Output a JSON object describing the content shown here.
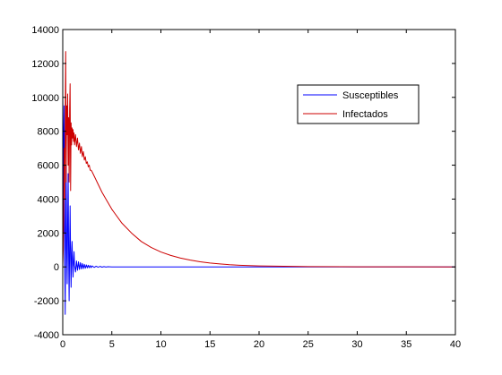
{
  "chart_data": {
    "type": "line",
    "xlim": [
      0,
      40
    ],
    "ylim": [
      -4000,
      14000
    ],
    "x_ticks": [
      0,
      5,
      10,
      15,
      20,
      25,
      30,
      35,
      40
    ],
    "y_ticks": [
      -4000,
      -2000,
      0,
      2000,
      4000,
      6000,
      8000,
      10000,
      12000,
      14000
    ],
    "x_tick_labels": [
      "0",
      "5",
      "10",
      "15",
      "20",
      "25",
      "30",
      "35",
      "40"
    ],
    "y_tick_labels": [
      "-4000",
      "-2000",
      "0",
      "2000",
      "4000",
      "6000",
      "8000",
      "10000",
      "12000",
      "14000"
    ],
    "grid": false,
    "legend_position": "upper-right",
    "series": [
      {
        "name": "Susceptibles",
        "color": "#0000ff",
        "x": [
          0.0,
          0.05,
          0.1,
          0.15,
          0.2,
          0.25,
          0.3,
          0.35,
          0.4,
          0.45,
          0.5,
          0.55,
          0.6,
          0.65,
          0.7,
          0.75,
          0.8,
          0.85,
          0.9,
          0.95,
          1.0,
          1.05,
          1.1,
          1.15,
          1.2,
          1.3,
          1.4,
          1.5,
          1.6,
          1.7,
          1.8,
          1.9,
          2.0,
          2.1,
          2.2,
          2.3,
          2.4,
          2.5,
          2.6,
          2.7,
          2.8,
          2.9,
          3.0,
          3.2,
          3.4,
          3.6,
          3.8,
          4.0,
          4.2,
          4.4,
          4.6,
          5.0,
          6.0,
          8.0,
          10.0,
          15.0,
          20.0,
          25.0,
          30.0,
          35.0,
          40.0
        ],
        "y": [
          10000,
          8000,
          2000,
          9500,
          500,
          -2800,
          2500,
          6000,
          1000,
          -1000,
          2500,
          5500,
          800,
          -2000,
          1200,
          3600,
          500,
          -1200,
          800,
          1500,
          200,
          -600,
          400,
          900,
          100,
          -300,
          350,
          -200,
          300,
          -150,
          250,
          -120,
          200,
          -100,
          150,
          -80,
          120,
          -60,
          100,
          -50,
          80,
          -40,
          60,
          -30,
          40,
          -20,
          30,
          -15,
          20,
          -10,
          10,
          0,
          0,
          0,
          0,
          0,
          0,
          0,
          0,
          0,
          0
        ]
      },
      {
        "name": "Infectados",
        "color": "#cc0000",
        "x": [
          0.0,
          0.05,
          0.1,
          0.15,
          0.2,
          0.25,
          0.3,
          0.35,
          0.4,
          0.45,
          0.5,
          0.55,
          0.6,
          0.65,
          0.7,
          0.75,
          0.8,
          0.85,
          0.9,
          0.95,
          1.0,
          1.05,
          1.1,
          1.15,
          1.2,
          1.3,
          1.4,
          1.5,
          1.6,
          1.7,
          1.8,
          1.9,
          2.0,
          2.1,
          2.2,
          2.3,
          2.4,
          2.5,
          2.6,
          2.7,
          2.8,
          2.9,
          3.0,
          3.5,
          4.0,
          4.5,
          5.0,
          6.0,
          7.0,
          8.0,
          9.0,
          10.0,
          11.0,
          12.0,
          13.0,
          14.0,
          15.0,
          16.0,
          17.0,
          18.0,
          20.0,
          25.0,
          30.0,
          35.0,
          40.0
        ],
        "y": [
          0,
          1000,
          3000,
          7000,
          4000,
          8500,
          12700,
          5000,
          9500,
          7800,
          10200,
          6000,
          8800,
          5000,
          9200,
          10800,
          4500,
          8500,
          7200,
          8200,
          7600,
          8100,
          7400,
          7900,
          7200,
          7800,
          7100,
          7600,
          6900,
          7300,
          6700,
          7100,
          6500,
          6800,
          6300,
          6500,
          6100,
          6200,
          5900,
          6000,
          5700,
          5700,
          5600,
          5000,
          4400,
          3900,
          3400,
          2600,
          2000,
          1500,
          1150,
          880,
          680,
          520,
          400,
          300,
          230,
          175,
          130,
          100,
          60,
          20,
          8,
          3,
          0
        ]
      }
    ]
  }
}
